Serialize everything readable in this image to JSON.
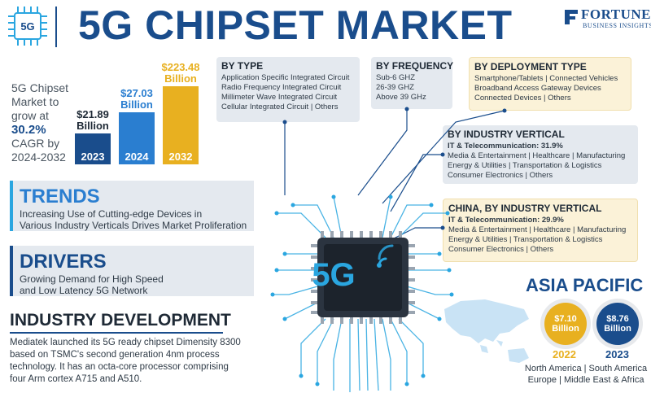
{
  "header": {
    "chip_label": "5G",
    "title": "5G CHIPSET MARKET",
    "brand_name": "FORTUNE",
    "brand_sub": "BUSINESS INSIGHTS",
    "accent": "#1a4d8c"
  },
  "growth": {
    "line1": "5G Chipset",
    "line2": "Market to",
    "line3": "grow at",
    "cagr": "30.2%",
    "line4": "CAGR by",
    "line5": "2024-2032"
  },
  "chart_data": {
    "type": "bar",
    "categories": [
      "2023",
      "2024",
      "2032"
    ],
    "values": [
      21.89,
      27.03,
      223.48
    ],
    "value_labels": [
      "$21.89 Billion",
      "$27.03 Billion",
      "$223.48 Billion"
    ],
    "label_prefix": [
      "$21.89",
      "$27.03",
      "$223.48"
    ],
    "label_unit": "Billion",
    "colors": [
      "#1a4d8c",
      "#2a7ed0",
      "#e8b020"
    ]
  },
  "by_type": {
    "title": "BY TYPE",
    "items": [
      "Application Specific Integrated Circuit",
      "Radio Frequency Integrated Circuit",
      "Millimeter Wave Integrated Circuit",
      "Cellular Integrated Circuit  |  Others"
    ]
  },
  "by_frequency": {
    "title": "BY FREQUENCY",
    "items": [
      "Sub-6 GHZ",
      "26-39 GHZ",
      "Above 39 GHz"
    ]
  },
  "by_deployment": {
    "title": "BY DEPLOYMENT TYPE",
    "items": [
      "Smartphone/Tablets  |  Connected Vehicles",
      "Broadband Access Gateway Devices",
      "Connected Devices  |  Others"
    ]
  },
  "by_industry": {
    "title": "BY INDUSTRY VERTICAL",
    "highlight": "IT & Telecommunication: 31.9%",
    "items": [
      "Media & Entertainment  |  Healthcare  |  Manufacturing",
      "Energy & Utilities  |  Transportation & Logistics",
      "Consumer Electronics  |  Others"
    ]
  },
  "china_industry": {
    "title": "CHINA, BY INDUSTRY VERTICAL",
    "highlight": "IT & Telecommunication: 29.9%",
    "items": [
      "Media & Entertainment  |  Healthcare  |  Manufacturing",
      "Energy & Utilities  |  Transportation & Logistics",
      "Consumer Electronics  |  Others"
    ]
  },
  "trends": {
    "title": "TRENDS",
    "line1": "Increasing Use of Cutting-edge Devices in",
    "line2": "Various Industry Verticals Drives Market Proliferation",
    "strip_color": "#2aa6e0"
  },
  "drivers": {
    "title": "DRIVERS",
    "line1": "Growing Demand for High Speed",
    "line2": "and Low Latency 5G Network",
    "strip_color": "#1a4d8c"
  },
  "industry_development": {
    "title": "INDUSTRY DEVELOPMENT",
    "text": "Mediatek launched its 5G ready chipset Dimensity 8300 based on TSMC's second generation 4nm process technology. It has an octa-core processor comprising four Arm cortex A715 and A510."
  },
  "chip": {
    "label": "5G"
  },
  "asia_pacific": {
    "title": "ASIA PACIFIC",
    "val_2022": "$7.10",
    "val_2023": "$8.76",
    "unit": "Billion",
    "year_2022": "2022",
    "year_2023": "2023",
    "regions_line1": "North America  |  South America",
    "regions_line2": "Europe  |  Middle East & Africa",
    "color_2022": "#e8b020",
    "color_2023": "#1a4d8c"
  }
}
